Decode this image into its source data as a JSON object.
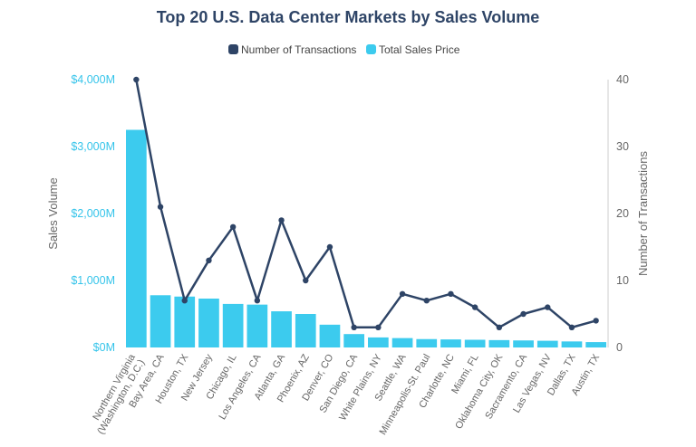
{
  "chart_data": {
    "type": "bar",
    "title": "Top 20 U.S. Data Center Markets by Sales Volume",
    "categories": [
      [
        "Northern Virginia",
        "(Washington, D.C.)"
      ],
      [
        "Bay Area, CA"
      ],
      [
        "Houston, TX"
      ],
      [
        "New Jersey"
      ],
      [
        "Chicago, IL"
      ],
      [
        "Los Angeles, CA"
      ],
      [
        "Atlanta, GA"
      ],
      [
        "Phoenix, AZ"
      ],
      [
        "Denver, CO"
      ],
      [
        "San Diego, CA"
      ],
      [
        "White Plains, NY"
      ],
      [
        "Seattle, WA"
      ],
      [
        "Minneapolis-St. Paul"
      ],
      [
        "Charlotte, NC"
      ],
      [
        "Miami, FL"
      ],
      [
        "Oklahoma City, OK"
      ],
      [
        "Sacramento, CA"
      ],
      [
        "Las Vegas, NV"
      ],
      [
        "Dallas, TX"
      ],
      [
        "Austin, TX"
      ]
    ],
    "series": [
      {
        "name": "Total Sales Price",
        "type": "bar",
        "axis": "left",
        "color": "#3ccbee",
        "values": [
          3250,
          780,
          760,
          730,
          650,
          640,
          540,
          500,
          340,
          200,
          150,
          140,
          125,
          120,
          115,
          110,
          105,
          100,
          90,
          80
        ]
      },
      {
        "name": "Number of Transactions",
        "type": "line",
        "axis": "right",
        "color": "#2e4466",
        "values": [
          40,
          21,
          7,
          13,
          18,
          7,
          19,
          10,
          15,
          3,
          3,
          8,
          7,
          8,
          6,
          3,
          5,
          6,
          3,
          4
        ]
      }
    ],
    "y_left": {
      "label": "Sales Volume",
      "range": [
        0,
        4000
      ],
      "ticks": [
        0,
        1000,
        2000,
        3000,
        4000
      ],
      "tick_labels": [
        "$0M",
        "$1,000M",
        "$2,000M",
        "$3,000M",
        "$4,000M"
      ]
    },
    "y_right": {
      "label": "Number of Transactions",
      "range": [
        0,
        40
      ],
      "ticks": [
        0,
        10,
        20,
        30,
        40
      ],
      "tick_labels": [
        "0",
        "10",
        "20",
        "30",
        "40"
      ]
    },
    "legend": {
      "placement": "top-center",
      "items": [
        "Number of Transactions",
        "Total Sales Price"
      ]
    },
    "grid": false
  }
}
